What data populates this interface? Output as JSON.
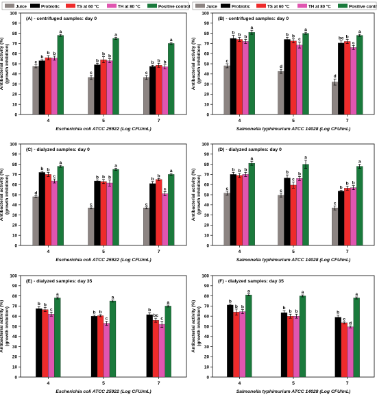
{
  "figure": {
    "series": [
      {
        "name": "Juice",
        "color": "#8c8482"
      },
      {
        "name": "Probiotic",
        "color": "#000000"
      },
      {
        "name": "TS at 60 °C",
        "color": "#ee2b2b"
      },
      {
        "name": "TH at 80 °C",
        "color": "#e055b0"
      },
      {
        "name": "Positive control",
        "color": "#1a7a3c"
      }
    ],
    "ylabel_line1": "Antibacterial activity (%)",
    "ylabel_line2": "(growth inhibition)"
  },
  "chart_data": [
    {
      "type": "bar",
      "title": "(A) - centrifuged samples: day 0",
      "xlabel": "Escherichia coli ATCC 25922 (Log CFU/mL)",
      "ylabel": "Antibacterial activity (%) (growth inhibition)",
      "ylim": [
        0,
        100
      ],
      "yticks": [
        0,
        10,
        20,
        30,
        40,
        50,
        60,
        70,
        80,
        90,
        100
      ],
      "categories": [
        "4",
        "5",
        "7"
      ],
      "series": [
        {
          "name": "Juice",
          "values": [
            47.5,
            36.5,
            36.5
          ],
          "errors": [
            1.5,
            2,
            2
          ],
          "labels": [
            "c",
            "c",
            "c"
          ]
        },
        {
          "name": "Probiotic",
          "values": [
            53,
            49,
            47.5
          ],
          "errors": [
            1,
            1.5,
            1
          ],
          "labels": [
            "b",
            "b",
            "b"
          ]
        },
        {
          "name": "TS at 60 °C",
          "values": [
            56,
            54,
            48.5
          ],
          "errors": [
            2,
            3,
            2
          ],
          "labels": [
            "b",
            "b",
            "b"
          ]
        },
        {
          "name": "TH at 80 °C",
          "values": [
            55.5,
            53,
            47
          ],
          "errors": [
            2,
            2,
            2
          ],
          "labels": [
            "b",
            "b",
            "b"
          ]
        },
        {
          "name": "Positive control",
          "values": [
            78,
            75,
            70
          ],
          "errors": [
            1,
            1,
            1
          ],
          "labels": [
            "a",
            "a",
            "a"
          ]
        }
      ]
    },
    {
      "type": "bar",
      "title": "(B) - centrifuged samples: day 0",
      "xlabel": "Salmonella typhimurium ATCC 14028 (Log CFU/mL)",
      "ylabel": "Antibacterial activity (%) (growth inhibition)",
      "ylim": [
        0,
        100
      ],
      "yticks": [
        0,
        10,
        20,
        30,
        40,
        50,
        60,
        70,
        80,
        90,
        100
      ],
      "categories": [
        "4",
        "5",
        "7"
      ],
      "series": [
        {
          "name": "Juice",
          "values": [
            48,
            42.5,
            32
          ],
          "errors": [
            2,
            2,
            3
          ],
          "labels": [
            "c",
            "d",
            "d"
          ]
        },
        {
          "name": "Probiotic",
          "values": [
            75,
            74,
            70.5
          ],
          "errors": [
            3,
            2,
            2
          ],
          "labels": [
            "b",
            "b",
            "bc"
          ]
        },
        {
          "name": "TS at 60 °C",
          "values": [
            74,
            72.5,
            72
          ],
          "errors": [
            2,
            2,
            2
          ],
          "labels": [
            "b",
            "b",
            "b"
          ]
        },
        {
          "name": "TH at 80 °C",
          "values": [
            72,
            68.5,
            66
          ],
          "errors": [
            2,
            3,
            2
          ],
          "labels": [
            "b",
            "c",
            "c"
          ]
        },
        {
          "name": "Positive control",
          "values": [
            81,
            80,
            78
          ],
          "errors": [
            2,
            1,
            1
          ],
          "labels": [
            "a",
            "a",
            "a"
          ]
        }
      ]
    },
    {
      "type": "bar",
      "title": "(C) - dialyzed samples: day 0",
      "xlabel": "Escherichia coli ATCC 25922 (Log CFU/mL)",
      "ylabel": "Antibacterial activity (%) (growth inhibition)",
      "ylim": [
        0,
        100
      ],
      "yticks": [
        0,
        10,
        20,
        30,
        40,
        50,
        60,
        70,
        80,
        90,
        100
      ],
      "categories": [
        "4",
        "5",
        "7"
      ],
      "series": [
        {
          "name": "Juice",
          "values": [
            48,
            37,
            37
          ],
          "errors": [
            1,
            1,
            1
          ],
          "labels": [
            "d",
            "c",
            "c"
          ]
        },
        {
          "name": "Probiotic",
          "values": [
            72,
            63.5,
            61
          ],
          "errors": [
            1,
            1,
            2
          ],
          "labels": [
            "b",
            "b",
            "b"
          ]
        },
        {
          "name": "TS at 60 °C",
          "values": [
            70,
            63,
            65
          ],
          "errors": [
            2,
            2,
            1
          ],
          "labels": [
            "b",
            "b",
            "b"
          ]
        },
        {
          "name": "TH at 80 °C",
          "values": [
            63.5,
            61.5,
            51
          ],
          "errors": [
            2,
            3,
            2
          ],
          "labels": [
            "c",
            "b",
            "c"
          ]
        },
        {
          "name": "Positive control",
          "values": [
            78,
            75,
            70
          ],
          "errors": [
            1,
            1,
            1
          ],
          "labels": [
            "a",
            "a",
            "a"
          ]
        }
      ]
    },
    {
      "type": "bar",
      "title": "(D) - dialyzed samples: day 0",
      "xlabel": "Salmonella typhimurium ATCC 14028 (Log CFU/mL)",
      "ylabel": "Antibacterial activity (%) (growth inhibition)",
      "ylim": [
        0,
        100
      ],
      "yticks": [
        0,
        10,
        20,
        30,
        40,
        50,
        60,
        70,
        80,
        90,
        100
      ],
      "categories": [
        "4",
        "5",
        "7"
      ],
      "series": [
        {
          "name": "Juice",
          "values": [
            51.5,
            49.5,
            37
          ],
          "errors": [
            2,
            2,
            2
          ],
          "labels": [
            "c",
            "c",
            "c"
          ]
        },
        {
          "name": "Probiotic",
          "values": [
            70,
            66.5,
            53.5
          ],
          "errors": [
            2,
            3,
            1
          ],
          "labels": [
            "b",
            "b",
            "b"
          ]
        },
        {
          "name": "TS at 60 °C",
          "values": [
            69,
            59.5,
            56.5
          ],
          "errors": [
            2,
            3,
            2
          ],
          "labels": [
            "b",
            "c",
            "b"
          ]
        },
        {
          "name": "TH at 80 °C",
          "values": [
            70,
            66,
            57
          ],
          "errors": [
            2,
            2,
            2
          ],
          "labels": [
            "b",
            "b",
            "b"
          ]
        },
        {
          "name": "Positive control",
          "values": [
            81,
            80,
            78
          ],
          "errors": [
            2,
            4,
            2
          ],
          "labels": [
            "a",
            "a",
            "a"
          ]
        }
      ]
    },
    {
      "type": "bar",
      "title": "(E) - dialyzed samples: day 35",
      "xlabel": "Escherichia coli ATCC 25922 (Log CFU/mL)",
      "ylabel": "Antibacterial activity (%) (growth inhibition)",
      "ylim": [
        0,
        100
      ],
      "yticks": [
        0,
        10,
        20,
        30,
        40,
        50,
        60,
        70,
        80,
        90,
        100
      ],
      "categories": [
        "4",
        "5",
        "7"
      ],
      "series": [
        {
          "name": "Probiotic",
          "values": [
            67.5,
            60,
            61.5
          ],
          "errors": [
            2,
            1,
            2
          ],
          "labels": [
            "b",
            "b",
            "b"
          ]
        },
        {
          "name": "TS at 60 °C",
          "values": [
            66.5,
            60.5,
            56
          ],
          "errors": [
            2,
            1,
            2
          ],
          "labels": [
            "b",
            "b",
            "bc"
          ]
        },
        {
          "name": "TH at 80 °C",
          "values": [
            62,
            53,
            52
          ],
          "errors": [
            2,
            2,
            3
          ],
          "labels": [
            "c",
            "c",
            "c"
          ]
        },
        {
          "name": "Positive control",
          "values": [
            78,
            75,
            70
          ],
          "errors": [
            1,
            1,
            1
          ],
          "labels": [
            "a",
            "a",
            "a"
          ]
        }
      ]
    },
    {
      "type": "bar",
      "title": "(F) - dialyzed samples: day 35",
      "xlabel": "Salmonella typhimurium ATCC 14028 (Log CFU/mL)",
      "ylabel": "Antibacterial activity (%) (growth inhibition)",
      "ylim": [
        0,
        100
      ],
      "yticks": [
        0,
        10,
        20,
        30,
        40,
        50,
        60,
        70,
        80,
        90,
        100
      ],
      "categories": [
        "4",
        "5",
        "7"
      ],
      "series": [
        {
          "name": "Probiotic",
          "values": [
            71,
            63.5,
            59
          ],
          "errors": [
            1,
            2,
            2
          ],
          "labels": [
            "b",
            "b",
            "b"
          ]
        },
        {
          "name": "TS at 60 °C",
          "values": [
            64,
            60,
            53.5
          ],
          "errors": [
            3,
            2,
            1
          ],
          "labels": [
            "b",
            "b",
            "c"
          ]
        },
        {
          "name": "TH at 80 °C",
          "values": [
            64.5,
            60,
            49.5
          ],
          "errors": [
            2,
            2,
            1
          ],
          "labels": [
            "b",
            "b",
            "d"
          ]
        },
        {
          "name": "Positive control",
          "values": [
            81,
            80,
            78
          ],
          "errors": [
            1,
            1,
            1
          ],
          "labels": [
            "a",
            "a",
            "a"
          ]
        }
      ]
    }
  ]
}
